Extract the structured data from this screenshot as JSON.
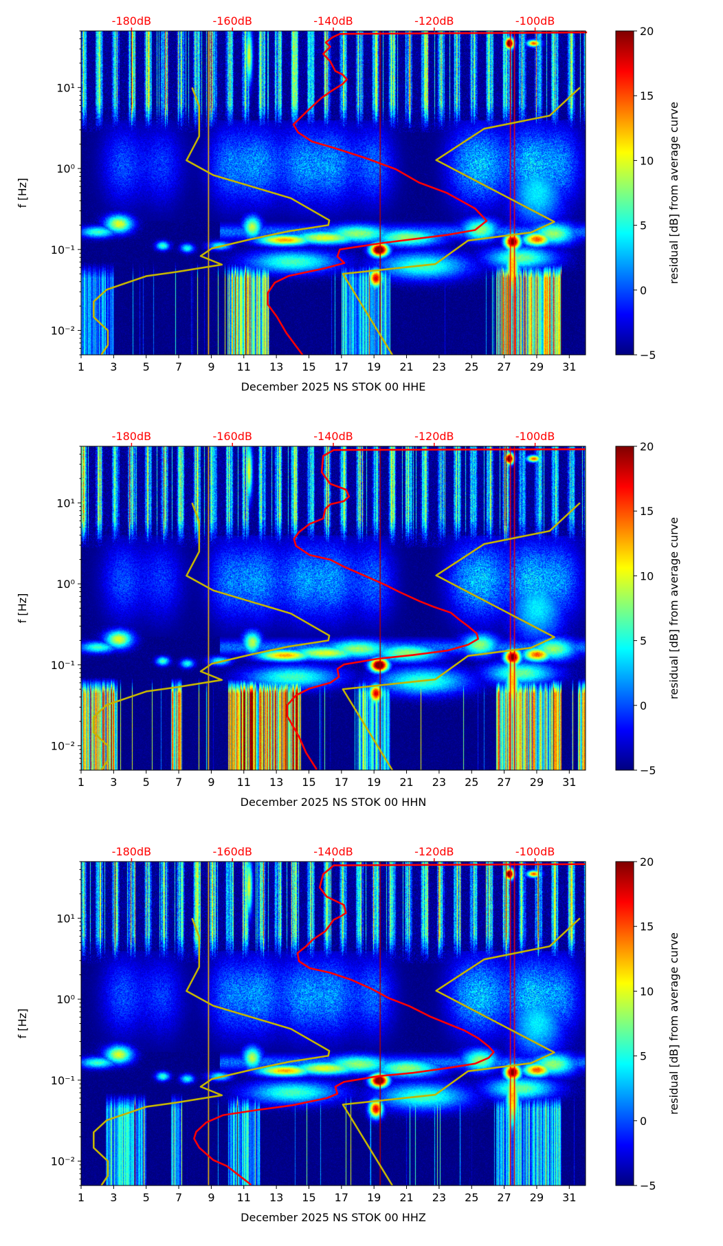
{
  "figure": {
    "ylabel": "f [Hz]",
    "colorbar_label": "residual [dB] from average curve",
    "colorbar_range": [
      -5,
      20
    ],
    "colorbar_tick_labels": [
      "−5",
      "0",
      "5",
      "10",
      "15",
      "20"
    ],
    "colorbar_ticks": [
      -5,
      0,
      5,
      10,
      15,
      20
    ],
    "colormap": "jet",
    "top_axis_ticks": [
      -180,
      -160,
      -140,
      -120,
      -100
    ],
    "top_axis_labels": [
      "-180dB",
      "-160dB",
      "-140dB",
      "-120dB",
      "-100dB"
    ],
    "top_axis_range_db": [
      -190,
      -90
    ],
    "top_axis_color": "#ff0000",
    "x_ticks": [
      1,
      3,
      5,
      7,
      9,
      11,
      13,
      15,
      17,
      19,
      21,
      23,
      25,
      27,
      29,
      31
    ],
    "x_tick_labels": [
      "1",
      "3",
      "5",
      "7",
      "9",
      "11",
      "13",
      "15",
      "17",
      "19",
      "21",
      "23",
      "25",
      "27",
      "29",
      "31"
    ],
    "xlim": [
      1,
      32
    ],
    "y_ticks": [
      0.01,
      0.1,
      1,
      10
    ],
    "y_tick_labels": [
      "10⁻²",
      "10⁻¹",
      "10⁰",
      "10¹"
    ],
    "ylim": [
      0.005,
      50
    ],
    "yscale": "log"
  },
  "noise_models": {
    "NLNM": {
      "color": "#c4b400",
      "points_db_hz": [
        [
          -168.0,
          10
        ],
        [
          -166.6,
          5.9
        ],
        [
          -166.6,
          2.5
        ],
        [
          -169.1,
          1.26
        ],
        [
          -163.8,
          0.83
        ],
        [
          -148.4,
          0.43
        ],
        [
          -140.8,
          0.23
        ],
        [
          -141.0,
          0.2
        ],
        [
          -148.9,
          0.168
        ],
        [
          -156.3,
          0.134
        ],
        [
          -164.1,
          0.103
        ],
        [
          -166.3,
          0.083
        ],
        [
          -162.1,
          0.065
        ],
        [
          -171.0,
          0.053
        ],
        [
          -177.0,
          0.047
        ],
        [
          -184.9,
          0.032
        ],
        [
          -187.5,
          0.0227
        ],
        [
          -187.5,
          0.0146
        ],
        [
          -184.7,
          0.01
        ],
        [
          -184.7,
          0.0066
        ],
        [
          -186.0,
          0.005
        ]
      ]
    },
    "NHNM": {
      "color": "#c4b400",
      "points_db_hz": [
        [
          -91.1,
          10
        ],
        [
          -97.1,
          4.5
        ],
        [
          -110.1,
          3.1
        ],
        [
          -119.6,
          1.27
        ],
        [
          -96.2,
          0.22
        ],
        [
          -100.8,
          0.162
        ],
        [
          -113.3,
          0.129
        ],
        [
          -119.8,
          0.066
        ],
        [
          -138.1,
          0.05
        ],
        [
          -128.3,
          0.005
        ]
      ]
    }
  },
  "chart_data": [
    {
      "type": "heatmap",
      "xlabel": "December 2025 NS STOK 00 HHE",
      "series": [
        {
          "name": "median PSD",
          "color": "#ff0000",
          "points_db_hz": [
            [
              -89.7,
              48
            ],
            [
              -138.7,
              46
            ],
            [
              -140.1,
              42
            ],
            [
              -141.5,
              36
            ],
            [
              -140.6,
              32
            ],
            [
              -142.0,
              26
            ],
            [
              -140.6,
              21
            ],
            [
              -139.6,
              16
            ],
            [
              -138.2,
              14.5
            ],
            [
              -137.3,
              12.6
            ],
            [
              -138.2,
              11
            ],
            [
              -140.6,
              8.9
            ],
            [
              -142.4,
              7.4
            ],
            [
              -145.2,
              5.1
            ],
            [
              -147.9,
              3.5
            ],
            [
              -147.0,
              2.8
            ],
            [
              -144.2,
              2.15
            ],
            [
              -139.6,
              1.78
            ],
            [
              -133.2,
              1.32
            ],
            [
              -127.6,
              0.98
            ],
            [
              -123.0,
              0.67
            ],
            [
              -117.5,
              0.5
            ],
            [
              -111.9,
              0.32
            ],
            [
              -109.6,
              0.226
            ],
            [
              -111.9,
              0.174
            ],
            [
              -117.5,
              0.151
            ],
            [
              -130.4,
              0.12
            ],
            [
              -138.7,
              0.1
            ],
            [
              -139.2,
              0.082
            ],
            [
              -137.8,
              0.068
            ],
            [
              -141.5,
              0.059
            ],
            [
              -148.9,
              0.047
            ],
            [
              -151.6,
              0.039
            ],
            [
              -153.0,
              0.029
            ],
            [
              -153.0,
              0.021
            ],
            [
              -151.2,
              0.0148
            ],
            [
              -149.3,
              0.0093
            ],
            [
              -146.1,
              0.005
            ]
          ]
        }
      ]
    },
    {
      "type": "heatmap",
      "xlabel": "December 2025 NS STOK 00 HHN",
      "series": [
        {
          "name": "median PSD",
          "color": "#ff0000",
          "points_db_hz": [
            [
              -90.1,
              46
            ],
            [
              -139.9,
              45
            ],
            [
              -142.0,
              38
            ],
            [
              -142.3,
              23.9
            ],
            [
              -140.6,
              17.2
            ],
            [
              -137.5,
              14.6
            ],
            [
              -136.9,
              12.0
            ],
            [
              -137.9,
              10.5
            ],
            [
              -140.6,
              9.6
            ],
            [
              -141.6,
              8.4
            ],
            [
              -142.0,
              6.4
            ],
            [
              -144.7,
              5.5
            ],
            [
              -146.8,
              4.36
            ],
            [
              -147.8,
              3.58
            ],
            [
              -147.4,
              2.94
            ],
            [
              -144.7,
              2.27
            ],
            [
              -140.6,
              1.99
            ],
            [
              -137.9,
              1.63
            ],
            [
              -133.8,
              1.26
            ],
            [
              -129.7,
              0.97
            ],
            [
              -127.0,
              0.8
            ],
            [
              -122.9,
              0.61
            ],
            [
              -120.1,
              0.52
            ],
            [
              -116.7,
              0.44
            ],
            [
              -115.0,
              0.36
            ],
            [
              -113.3,
              0.3
            ],
            [
              -111.6,
              0.245
            ],
            [
              -111.3,
              0.209
            ],
            [
              -113.3,
              0.177
            ],
            [
              -117.4,
              0.15
            ],
            [
              -124.2,
              0.132
            ],
            [
              -131.1,
              0.119
            ],
            [
              -137.9,
              0.101
            ],
            [
              -139.2,
              0.089
            ],
            [
              -138.9,
              0.071
            ],
            [
              -140.6,
              0.06
            ],
            [
              -144.7,
              0.051
            ],
            [
              -147.4,
              0.042
            ],
            [
              -149.1,
              0.032
            ],
            [
              -149.1,
              0.023
            ],
            [
              -148.1,
              0.018
            ],
            [
              -146.8,
              0.0129
            ],
            [
              -145.4,
              0.0082
            ],
            [
              -143.3,
              0.0051
            ]
          ]
        }
      ]
    },
    {
      "type": "heatmap",
      "xlabel": "December 2025 NS STOK 00 HHZ",
      "series": [
        {
          "name": "median PSD",
          "color": "#ff0000",
          "points_db_hz": [
            [
              -90.1,
              46.5
            ],
            [
              -139.9,
              45
            ],
            [
              -142.0,
              35
            ],
            [
              -142.7,
              23.9
            ],
            [
              -141.3,
              18.4
            ],
            [
              -137.9,
              14.6
            ],
            [
              -137.5,
              11.6
            ],
            [
              -138.6,
              10.5
            ],
            [
              -139.9,
              9.6
            ],
            [
              -141.6,
              6.9
            ],
            [
              -144.0,
              5.5
            ],
            [
              -145.4,
              4.5
            ],
            [
              -147.1,
              3.7
            ],
            [
              -146.8,
              2.94
            ],
            [
              -144.7,
              2.42
            ],
            [
              -140.6,
              2.12
            ],
            [
              -136.5,
              1.74
            ],
            [
              -132.4,
              1.34
            ],
            [
              -129.0,
              1.03
            ],
            [
              -124.9,
              0.82
            ],
            [
              -120.8,
              0.61
            ],
            [
              -117.4,
              0.5
            ],
            [
              -114.0,
              0.41
            ],
            [
              -111.3,
              0.33
            ],
            [
              -109.2,
              0.26
            ],
            [
              -108.2,
              0.222
            ],
            [
              -109.2,
              0.189
            ],
            [
              -111.9,
              0.16
            ],
            [
              -117.4,
              0.141
            ],
            [
              -124.2,
              0.123
            ],
            [
              -131.1,
              0.112
            ],
            [
              -137.9,
              0.095
            ],
            [
              -139.6,
              0.083
            ],
            [
              -139.2,
              0.068
            ],
            [
              -141.3,
              0.06
            ],
            [
              -148.1,
              0.049
            ],
            [
              -154.9,
              0.043
            ],
            [
              -161.8,
              0.037
            ],
            [
              -165.2,
              0.03
            ],
            [
              -167.2,
              0.023
            ],
            [
              -167.6,
              0.019
            ],
            [
              -166.6,
              0.0147
            ],
            [
              -163.8,
              0.0103
            ],
            [
              -161.1,
              0.0087
            ],
            [
              -156.3,
              0.0051
            ]
          ]
        }
      ]
    }
  ]
}
